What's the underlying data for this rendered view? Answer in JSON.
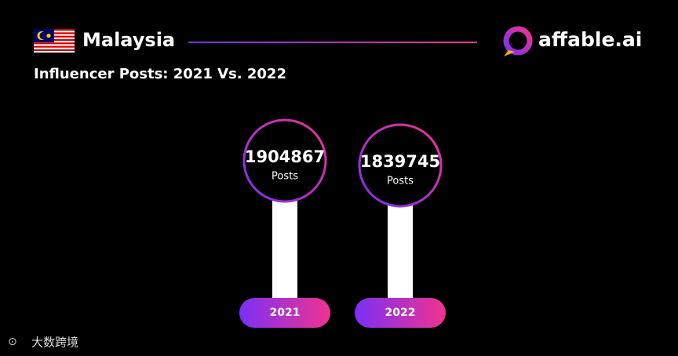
{
  "chart_data": {
    "type": "lollipop",
    "title": "Malaysia",
    "subtitle": "Influencer Posts: 2021 Vs. 2022",
    "brand": "affable.ai",
    "unit_label": "Posts",
    "categories": [
      "2021",
      "2022"
    ],
    "values": [
      1904867,
      1839745
    ],
    "watermark": "大数跨境"
  }
}
